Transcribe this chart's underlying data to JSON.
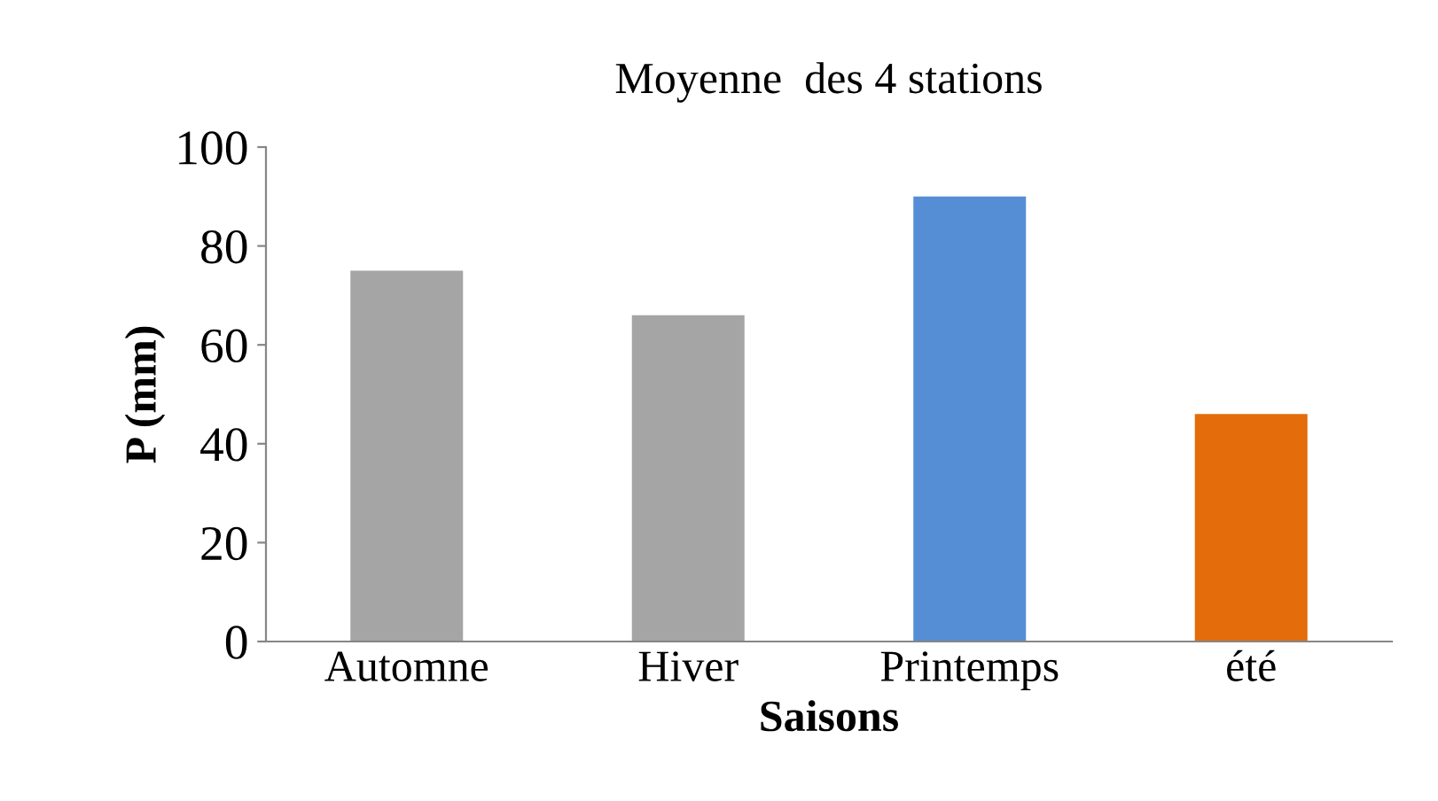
{
  "chart_data": {
    "type": "bar",
    "title": "Moyenne  des 4 stations",
    "xlabel": "Saisons",
    "ylabel": "P (mm)",
    "categories": [
      "Automne",
      "Hiver",
      "Printemps",
      "été"
    ],
    "values": [
      75,
      66,
      90,
      46
    ],
    "colors": [
      "#a5a5a5",
      "#a5a5a5",
      "#558ed5",
      "#e46c0a"
    ],
    "ylim": [
      0,
      100
    ],
    "yticks": [
      0,
      20,
      40,
      60,
      80,
      100
    ],
    "grid": false,
    "legend": false
  }
}
